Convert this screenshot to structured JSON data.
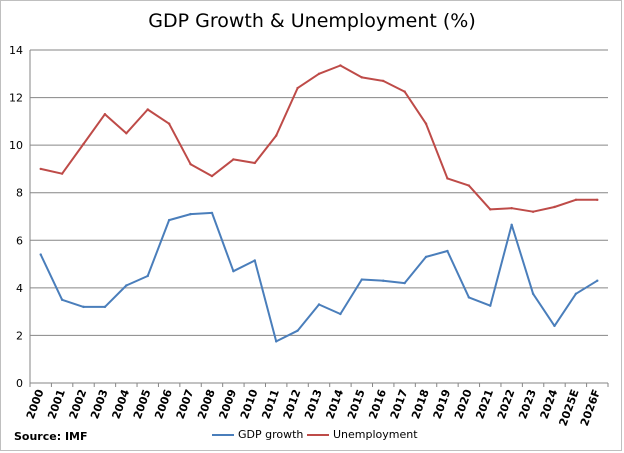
{
  "chart_data": {
    "type": "line",
    "title": "GDP Growth & Unemployment (%)",
    "source": "Source: IMF",
    "categories": [
      "2000",
      "2001",
      "2002",
      "2003",
      "2004",
      "2005",
      "2006",
      "2007",
      "2008",
      "2009",
      "2010",
      "2011",
      "2012",
      "2013",
      "2014",
      "2015",
      "2016",
      "2017",
      "2018",
      "2019",
      "2020",
      "2021",
      "2022",
      "2023",
      "2024",
      "2025E",
      "2026F"
    ],
    "series": [
      {
        "name": "GDP growth",
        "color": "#4a7ebb",
        "values": [
          5.4,
          3.5,
          3.2,
          3.2,
          4.1,
          4.5,
          6.85,
          7.1,
          7.15,
          4.7,
          5.15,
          1.75,
          2.2,
          3.3,
          2.9,
          4.35,
          4.3,
          4.2,
          5.3,
          5.55,
          3.6,
          3.25,
          6.65,
          3.75,
          2.4,
          3.75,
          4.3
        ]
      },
      {
        "name": "Unemployment",
        "color": "#be4b48",
        "values": [
          9.0,
          8.8,
          10.05,
          11.3,
          10.5,
          11.5,
          10.9,
          9.2,
          8.7,
          9.4,
          9.25,
          10.4,
          12.4,
          13.0,
          13.35,
          12.85,
          12.7,
          12.25,
          10.9,
          8.6,
          8.3,
          7.3,
          7.35,
          7.2,
          7.4,
          7.7,
          7.7
        ]
      }
    ],
    "ylim": [
      0,
      14
    ],
    "yticks": [
      0,
      2,
      4,
      6,
      8,
      10,
      12,
      14
    ],
    "grid": true,
    "legend_position": "bottom"
  }
}
